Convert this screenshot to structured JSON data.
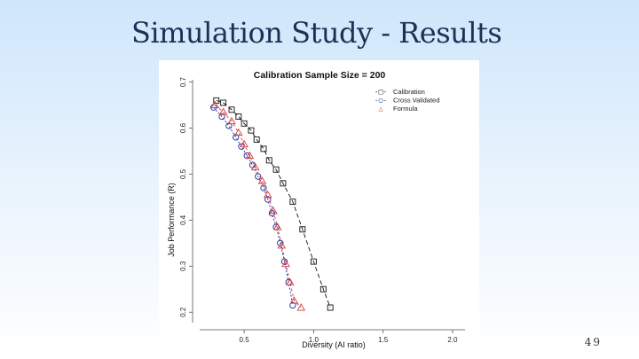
{
  "slide": {
    "title": "Simulation Study - Results",
    "page_number": "49"
  },
  "colors": {
    "calibration": "#111111",
    "cross_validated": "#1a2a9a",
    "formula": "#d63a3a",
    "axis": "#555555"
  },
  "chart_data": {
    "type": "line",
    "title": "Calibration Sample Size = 200",
    "xlabel": "Diversity (AI ratio)",
    "ylabel": "Job Performance (R)",
    "xlim": [
      0.18,
      2.09
    ],
    "ylim": [
      0.185,
      0.705
    ],
    "xticks": [
      0.5,
      1.0,
      1.5,
      2.0
    ],
    "xtick_labels": [
      "0.5",
      "1.0",
      "1.5",
      "2.0"
    ],
    "yticks": [
      0.2,
      0.3,
      0.4,
      0.5,
      0.6,
      0.7
    ],
    "ytick_labels": [
      "0.2",
      "0.3",
      "0.4",
      "0.5",
      "0.6",
      "0.7"
    ],
    "legend_position": "top-right",
    "series": [
      {
        "name": "Calibration",
        "marker": "square",
        "color": "#111111",
        "legend_symbol": "-□-",
        "x": [
          0.3,
          0.35,
          0.41,
          0.46,
          0.5,
          0.55,
          0.59,
          0.64,
          0.68,
          0.73,
          0.78,
          0.85,
          0.92,
          1.0,
          1.07,
          1.12
        ],
        "y": [
          0.66,
          0.655,
          0.64,
          0.625,
          0.61,
          0.595,
          0.575,
          0.555,
          0.53,
          0.51,
          0.48,
          0.44,
          0.38,
          0.31,
          0.25,
          0.21
        ]
      },
      {
        "name": "Cross Validated",
        "marker": "circle",
        "color": "#1a2a9a",
        "legend_symbol": "-○-",
        "x": [
          0.28,
          0.34,
          0.39,
          0.44,
          0.48,
          0.52,
          0.56,
          0.6,
          0.64,
          0.67,
          0.7,
          0.73,
          0.76,
          0.79,
          0.82,
          0.85
        ],
        "y": [
          0.645,
          0.625,
          0.605,
          0.58,
          0.56,
          0.54,
          0.52,
          0.495,
          0.47,
          0.445,
          0.415,
          0.385,
          0.35,
          0.31,
          0.265,
          0.215
        ]
      },
      {
        "name": "Formula",
        "marker": "triangle",
        "color": "#d63a3a",
        "legend_symbol": "△",
        "x": [
          0.29,
          0.35,
          0.41,
          0.46,
          0.5,
          0.54,
          0.58,
          0.63,
          0.67,
          0.71,
          0.74,
          0.77,
          0.8,
          0.83,
          0.86,
          0.91
        ],
        "y": [
          0.65,
          0.635,
          0.615,
          0.59,
          0.565,
          0.54,
          0.515,
          0.485,
          0.455,
          0.42,
          0.385,
          0.345,
          0.305,
          0.265,
          0.225,
          0.21
        ]
      }
    ]
  }
}
